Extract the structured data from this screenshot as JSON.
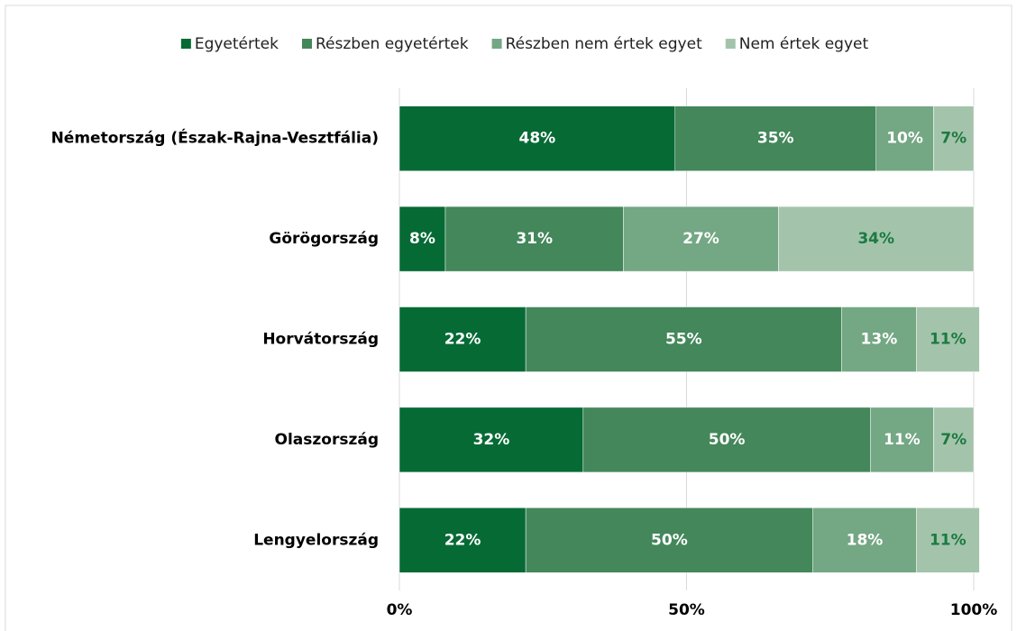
{
  "chart_data": {
    "type": "bar",
    "orientation": "horizontal",
    "stacked": true,
    "categories": [
      "Németország (Észak-Rajna-Vesztfália)",
      "Görögország",
      "Horvátország",
      "Olaszország",
      "Lengyelország"
    ],
    "series": [
      {
        "name": "Egyetértek",
        "color": "#066a35",
        "label_color": "#ffffff",
        "values": [
          48,
          8,
          22,
          32,
          22
        ],
        "value_labels": [
          "48%",
          "8%",
          "22%",
          "32%",
          "22%"
        ]
      },
      {
        "name": "Részben egyetértek",
        "color": "#43875a",
        "label_color": "#ffffff",
        "values": [
          35,
          31,
          55,
          50,
          50
        ],
        "value_labels": [
          "35%",
          "31%",
          "55%",
          "50%",
          "50%"
        ]
      },
      {
        "name": "Részben nem értek egyet",
        "color": "#74a784",
        "label_color": "#ffffff",
        "values": [
          10,
          27,
          13,
          11,
          18
        ],
        "value_labels": [
          "10%",
          "27%",
          "13%",
          "11%",
          "18%"
        ]
      },
      {
        "name": "Nem értek egyet",
        "color": "#a3c4ab",
        "label_color": "#1b7a41",
        "values": [
          7,
          34,
          11,
          7,
          11
        ],
        "value_labels": [
          "7%",
          "34%",
          "11%",
          "7%",
          "11%"
        ]
      }
    ],
    "xlim": [
      0,
      100
    ],
    "xticks": [
      {
        "value": 0,
        "label": "0%"
      },
      {
        "value": 50,
        "label": "50%"
      },
      {
        "value": 100,
        "label": "100%"
      }
    ],
    "grid": true,
    "legend": "top"
  }
}
